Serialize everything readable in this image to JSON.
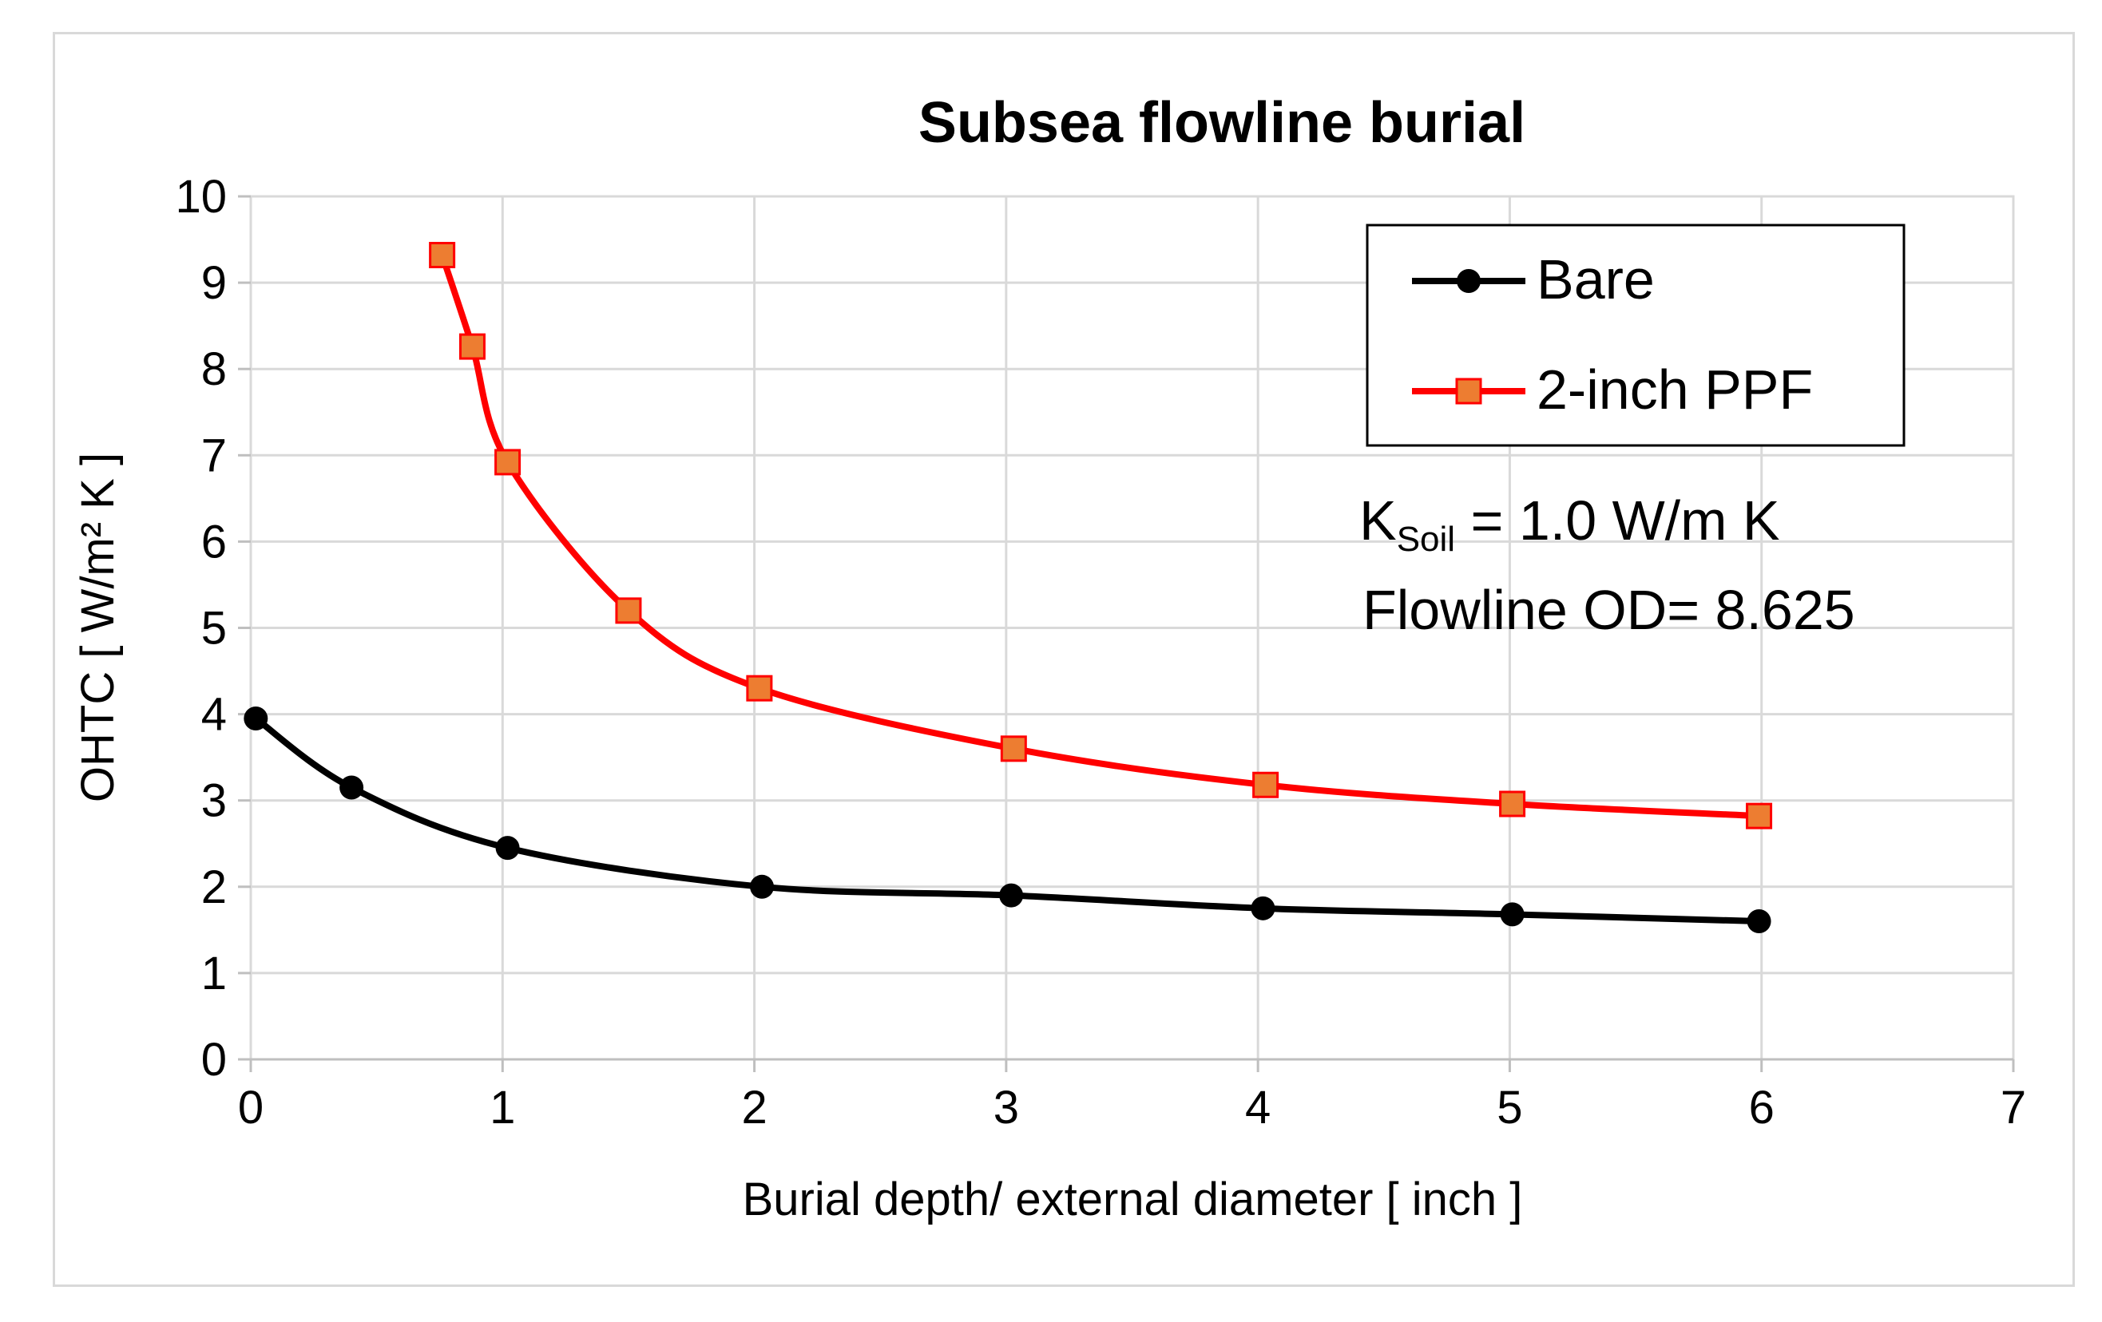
{
  "chart_data": {
    "type": "line",
    "title": "Subsea flowline burial",
    "xlabel": "Burial depth/ external diameter [ inch ]",
    "ylabel": "OHTC [ W/m² K ]",
    "xlim": [
      0,
      7
    ],
    "ylim": [
      0,
      10
    ],
    "xticks": [
      "0",
      "1",
      "2",
      "3",
      "4",
      "5",
      "6",
      "7"
    ],
    "yticks": [
      "0",
      "1",
      "2",
      "3",
      "4",
      "5",
      "6",
      "7",
      "8",
      "9",
      "10"
    ],
    "grid": "vertical-and-horizontal",
    "legend_position": "top-right",
    "series": [
      {
        "name": "Bare",
        "color": "#000000",
        "marker": "circle",
        "x": [
          0.02,
          0.4,
          1.02,
          2.03,
          3.02,
          4.02,
          5.01,
          5.99
        ],
        "y": [
          3.95,
          3.15,
          2.45,
          2.0,
          1.9,
          1.75,
          1.68,
          1.6
        ]
      },
      {
        "name": "2-inch PPF",
        "color": "#ff0000",
        "marker_fill": "#ed7d31",
        "marker": "square",
        "x": [
          0.76,
          0.88,
          1.02,
          1.5,
          2.02,
          3.03,
          4.03,
          5.01,
          5.99
        ],
        "y": [
          9.32,
          8.26,
          6.92,
          5.2,
          4.3,
          3.6,
          3.18,
          2.96,
          2.82
        ]
      }
    ],
    "annotations": {
      "k_prefix": "K",
      "k_subscript": "Soil",
      "k_value": " = 1.0 W/m K",
      "flowline": "Flowline OD= 8.625"
    }
  }
}
